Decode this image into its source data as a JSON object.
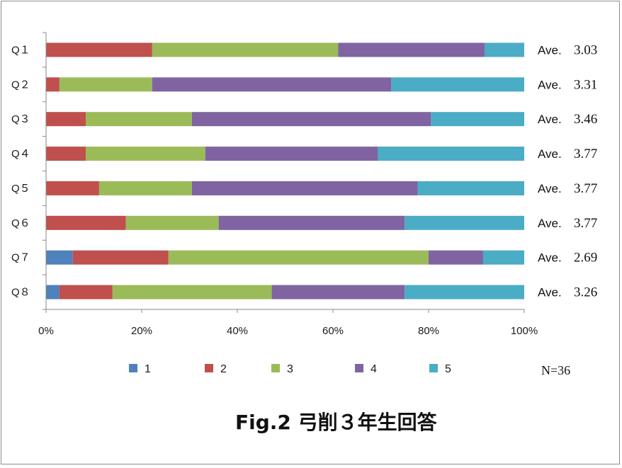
{
  "chart_data": {
    "type": "bar",
    "orientation": "horizontal",
    "stacked": "percent",
    "title": "Fig.2 弓削３年生回答",
    "categories": [
      "Q１",
      "Q２",
      "Q３",
      "Q４",
      "Q５",
      "Q６",
      "Q７",
      "Q８"
    ],
    "series": [
      {
        "name": "1",
        "color": "#4f81bd",
        "values": [
          0,
          0,
          0,
          0,
          0,
          0,
          5.6,
          2.8
        ]
      },
      {
        "name": "2",
        "color": "#c0504d",
        "values": [
          22.2,
          2.8,
          8.3,
          8.3,
          11.1,
          16.7,
          20.0,
          11.1
        ]
      },
      {
        "name": "3",
        "color": "#9bbb59",
        "values": [
          38.9,
          19.4,
          22.2,
          25.0,
          19.4,
          19.4,
          54.4,
          33.3
        ]
      },
      {
        "name": "4",
        "color": "#8064a2",
        "values": [
          30.6,
          50.0,
          50.0,
          36.1,
          47.2,
          38.9,
          11.4,
          27.8
        ]
      },
      {
        "name": "5",
        "color": "#4bacc6",
        "values": [
          8.3,
          27.8,
          19.5,
          30.6,
          22.3,
          25.0,
          8.6,
          25.0
        ]
      }
    ],
    "xlim": [
      0,
      100
    ],
    "x_ticks": [
      "0%",
      "20%",
      "40%",
      "60%",
      "80%",
      "100%"
    ],
    "averages": {
      "label": "Ave.",
      "values": [
        "3.03",
        "3.31",
        "3.46",
        "3.77",
        "3.77",
        "3.77",
        "2.69",
        "3.26"
      ]
    },
    "legend_placement": "bottom",
    "grid": false,
    "note": "N=36"
  }
}
